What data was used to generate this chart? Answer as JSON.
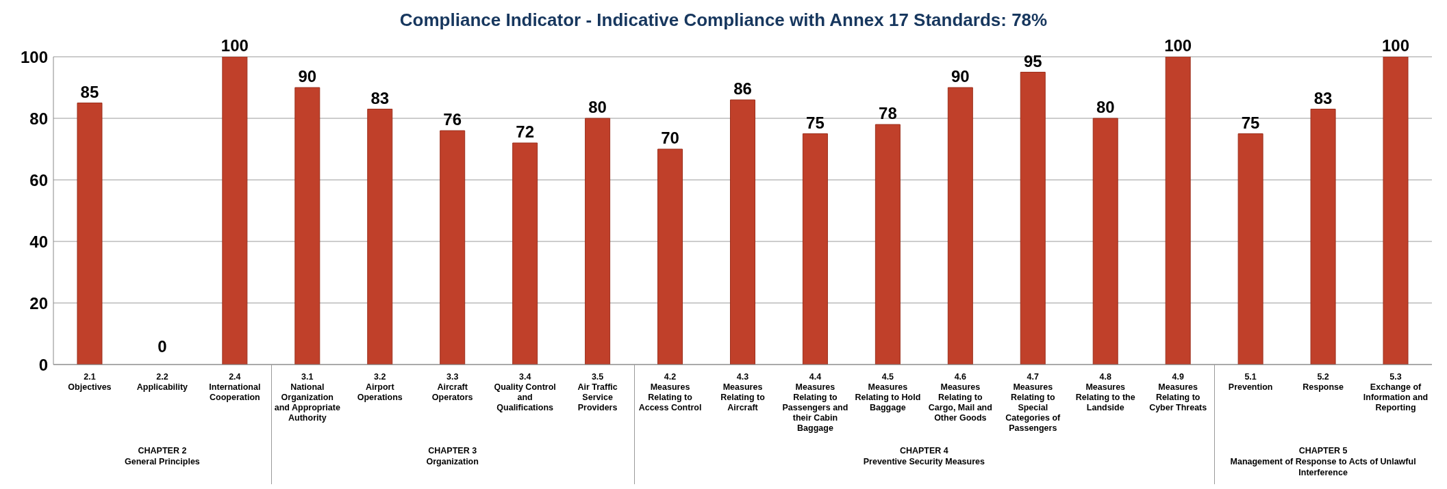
{
  "chart_data": {
    "type": "bar",
    "title": "Compliance Indicator - Indicative Compliance with Annex 17 Standards: 78%",
    "categories": [
      "2.1\nObjectives",
      "2.2\nApplicability",
      "2.4\nInternational\nCooperation",
      "3.1\nNational\nOrganization\nand Appropriate\nAuthority",
      "3.2\nAirport\nOperations",
      "3.3\nAircraft\nOperators",
      "3.4\nQuality Control\nand\nQualifications",
      "3.5\nAir Traffic\nService\nProviders",
      "4.2\nMeasures\nRelating to\nAccess Control",
      "4.3\nMeasures\nRelating to\nAircraft",
      "4.4\nMeasures\nRelating to\nPassengers and\ntheir Cabin\nBaggage",
      "4.5\nMeasures\nRelating to Hold\nBaggage",
      "4.6\nMeasures\nRelating to\nCargo, Mail and\nOther Goods",
      "4.7\nMeasures\nRelating to\nSpecial\nCategories of\nPassengers",
      "4.8\nMeasures\nRelating to the\nLandside",
      "4.9\nMeasures\nRelating to\nCyber Threats",
      "5.1\nPrevention",
      "5.2\nResponse",
      "5.3\nExchange of\nInformation and\nReporting"
    ],
    "values": [
      85,
      0,
      100,
      90,
      83,
      76,
      72,
      80,
      70,
      86,
      75,
      78,
      90,
      95,
      80,
      100,
      75,
      83,
      100
    ],
    "color": "#c0402a",
    "ylim": [
      0,
      100
    ],
    "yticks": [
      0,
      20,
      40,
      60,
      80,
      100
    ],
    "grid": "y",
    "data_labels": true,
    "annotations": [
      "CHAPTER 2\nGeneral Principles",
      "CHAPTER 3\nOrganization",
      "CHAPTER 4\nPreventive Security Measures",
      "CHAPTER 5\nManagement of Response to Acts of Unlawful\nInterference"
    ]
  }
}
